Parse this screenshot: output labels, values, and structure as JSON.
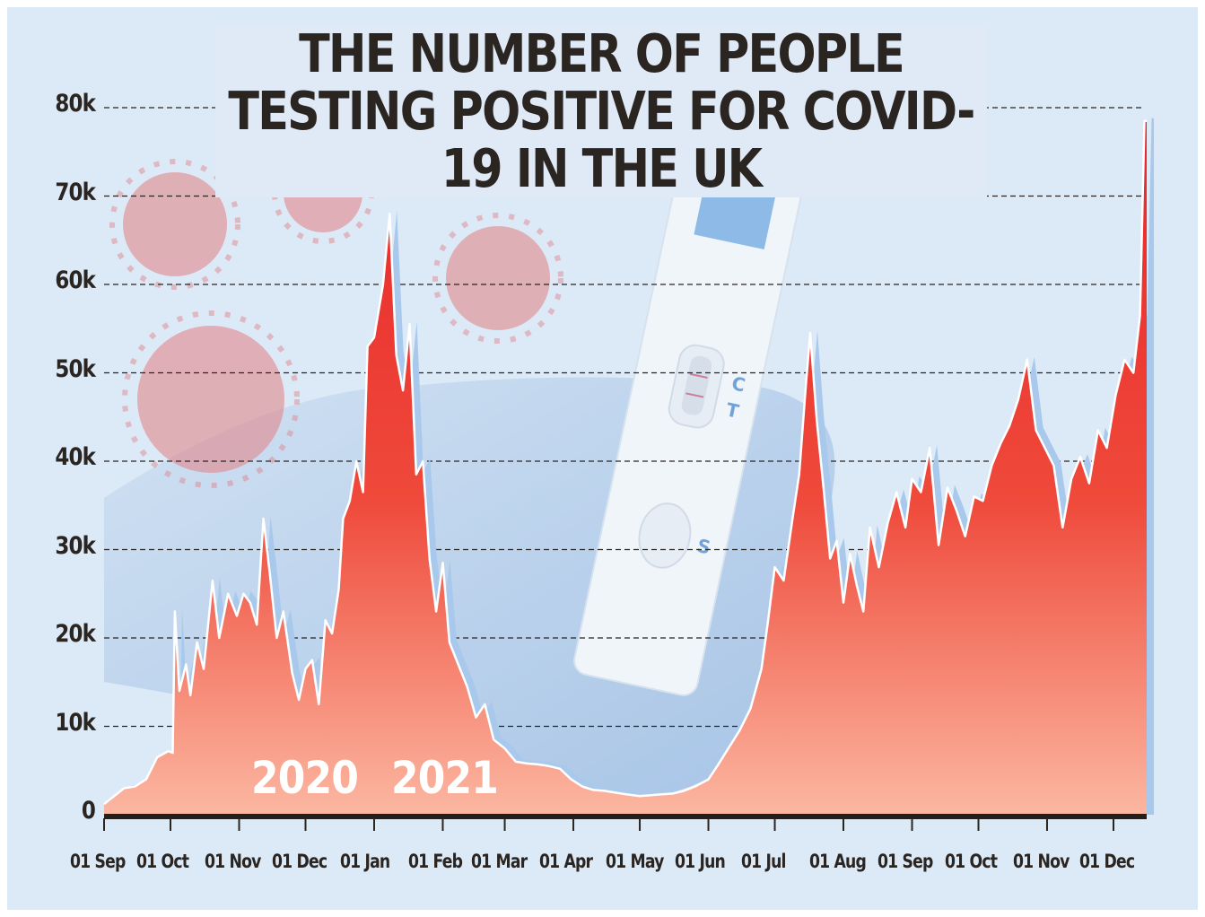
{
  "chart_data": {
    "type": "area",
    "title": "THE NUMBER OF PEOPLE TESTING POSITIVE FOR COVID-19 IN THE UK",
    "xlabel": "",
    "ylabel": "",
    "ylim": [
      0,
      80000
    ],
    "y_tick_labels": [
      "0",
      "10k",
      "20k",
      "30k",
      "40k",
      "50k",
      "60k",
      "70k",
      "80k"
    ],
    "y_tick_values": [
      0,
      10000,
      20000,
      30000,
      40000,
      50000,
      60000,
      70000,
      80000
    ],
    "x_tick_labels": [
      "01 Sep",
      "01 Oct",
      "01 Nov",
      "01 Dec",
      "01 Jan",
      "01 Feb",
      "01 Mar",
      "01 Apr",
      "01 May",
      "01 Jun",
      "01 Jul",
      "01 Aug",
      "01 Sep",
      "01 Oct",
      "01 Nov",
      "01 Dec"
    ],
    "x_tick_dates": [
      "2020-09-01",
      "2020-10-01",
      "2020-11-01",
      "2020-12-01",
      "2021-01-01",
      "2021-02-01",
      "2021-03-01",
      "2021-04-01",
      "2021-05-01",
      "2021-06-01",
      "2021-07-01",
      "2021-08-01",
      "2021-09-01",
      "2021-10-01",
      "2021-11-01",
      "2021-12-01"
    ],
    "year_labels": [
      "2020",
      "2021"
    ],
    "grid": true,
    "series": [
      {
        "values": [
          [
            "2020-09-01",
            1200
          ],
          [
            "2020-09-05",
            2000
          ],
          [
            "2020-09-10",
            3000
          ],
          [
            "2020-09-15",
            3200
          ],
          [
            "2020-09-20",
            4000
          ],
          [
            "2020-09-25",
            6500
          ],
          [
            "2020-09-30",
            7200
          ],
          [
            "2020-10-02",
            7000
          ],
          [
            "2020-10-03",
            23000
          ],
          [
            "2020-10-05",
            14000
          ],
          [
            "2020-10-08",
            17000
          ],
          [
            "2020-10-10",
            13500
          ],
          [
            "2020-10-13",
            19500
          ],
          [
            "2020-10-16",
            16500
          ],
          [
            "2020-10-20",
            26500
          ],
          [
            "2020-10-23",
            20000
          ],
          [
            "2020-10-27",
            25000
          ],
          [
            "2020-10-31",
            22500
          ],
          [
            "2020-11-03",
            25000
          ],
          [
            "2020-11-06",
            24000
          ],
          [
            "2020-11-09",
            21500
          ],
          [
            "2020-11-12",
            33500
          ],
          [
            "2020-11-15",
            27000
          ],
          [
            "2020-11-18",
            20000
          ],
          [
            "2020-11-21",
            23000
          ],
          [
            "2020-11-25",
            16000
          ],
          [
            "2020-11-28",
            13000
          ],
          [
            "2020-12-01",
            16500
          ],
          [
            "2020-12-04",
            17500
          ],
          [
            "2020-12-07",
            12500
          ],
          [
            "2020-12-10",
            22000
          ],
          [
            "2020-12-13",
            20500
          ],
          [
            "2020-12-16",
            25500
          ],
          [
            "2020-12-18",
            33500
          ],
          [
            "2020-12-21",
            35500
          ],
          [
            "2020-12-24",
            40000
          ],
          [
            "2020-12-27",
            36500
          ],
          [
            "2020-12-29",
            53000
          ],
          [
            "2021-01-01",
            54000
          ],
          [
            "2021-01-05",
            60000
          ],
          [
            "2021-01-08",
            68000
          ],
          [
            "2021-01-11",
            52000
          ],
          [
            "2021-01-14",
            48000
          ],
          [
            "2021-01-17",
            55500
          ],
          [
            "2021-01-20",
            38500
          ],
          [
            "2021-01-23",
            40000
          ],
          [
            "2021-01-26",
            29000
          ],
          [
            "2021-01-29",
            23000
          ],
          [
            "2021-02-01",
            28500
          ],
          [
            "2021-02-04",
            19500
          ],
          [
            "2021-02-08",
            17000
          ],
          [
            "2021-02-12",
            14500
          ],
          [
            "2021-02-16",
            11000
          ],
          [
            "2021-02-20",
            12500
          ],
          [
            "2021-02-24",
            8500
          ],
          [
            "2021-03-01",
            7500
          ],
          [
            "2021-03-06",
            6000
          ],
          [
            "2021-03-11",
            5800
          ],
          [
            "2021-03-16",
            5700
          ],
          [
            "2021-03-21",
            5500
          ],
          [
            "2021-03-26",
            5200
          ],
          [
            "2021-03-31",
            4000
          ],
          [
            "2021-04-05",
            3200
          ],
          [
            "2021-04-10",
            2800
          ],
          [
            "2021-04-15",
            2700
          ],
          [
            "2021-04-20",
            2500
          ],
          [
            "2021-04-25",
            2300
          ],
          [
            "2021-05-01",
            2100
          ],
          [
            "2021-05-06",
            2200
          ],
          [
            "2021-05-11",
            2300
          ],
          [
            "2021-05-16",
            2400
          ],
          [
            "2021-05-21",
            2700
          ],
          [
            "2021-05-26",
            3200
          ],
          [
            "2021-06-01",
            4000
          ],
          [
            "2021-06-05",
            5500
          ],
          [
            "2021-06-10",
            7500
          ],
          [
            "2021-06-15",
            9500
          ],
          [
            "2021-06-20",
            12000
          ],
          [
            "2021-06-25",
            16500
          ],
          [
            "2021-06-28",
            22000
          ],
          [
            "2021-07-01",
            28000
          ],
          [
            "2021-07-05",
            26500
          ],
          [
            "2021-07-09",
            33500
          ],
          [
            "2021-07-12",
            38500
          ],
          [
            "2021-07-15",
            48500
          ],
          [
            "2021-07-17",
            54500
          ],
          [
            "2021-07-20",
            44500
          ],
          [
            "2021-07-23",
            37000
          ],
          [
            "2021-07-26",
            29000
          ],
          [
            "2021-07-29",
            31000
          ],
          [
            "2021-08-01",
            24000
          ],
          [
            "2021-08-04",
            29500
          ],
          [
            "2021-08-07",
            26000
          ],
          [
            "2021-08-10",
            23000
          ],
          [
            "2021-08-13",
            32500
          ],
          [
            "2021-08-17",
            28000
          ],
          [
            "2021-08-21",
            33000
          ],
          [
            "2021-08-25",
            36500
          ],
          [
            "2021-08-29",
            32500
          ],
          [
            "2021-09-01",
            38000
          ],
          [
            "2021-09-05",
            36500
          ],
          [
            "2021-09-09",
            41500
          ],
          [
            "2021-09-13",
            30500
          ],
          [
            "2021-09-17",
            37000
          ],
          [
            "2021-09-21",
            34500
          ],
          [
            "2021-09-25",
            31500
          ],
          [
            "2021-09-29",
            36000
          ],
          [
            "2021-10-03",
            35500
          ],
          [
            "2021-10-07",
            39500
          ],
          [
            "2021-10-11",
            42000
          ],
          [
            "2021-10-15",
            44000
          ],
          [
            "2021-10-19",
            47000
          ],
          [
            "2021-10-23",
            51500
          ],
          [
            "2021-10-27",
            43500
          ],
          [
            "2021-10-31",
            41500
          ],
          [
            "2021-11-04",
            39500
          ],
          [
            "2021-11-08",
            32500
          ],
          [
            "2021-11-12",
            38000
          ],
          [
            "2021-11-16",
            40500
          ],
          [
            "2021-11-20",
            37500
          ],
          [
            "2021-11-24",
            43500
          ],
          [
            "2021-11-28",
            41500
          ],
          [
            "2021-12-02",
            47500
          ],
          [
            "2021-12-06",
            51500
          ],
          [
            "2021-12-10",
            50000
          ],
          [
            "2021-12-13",
            56500
          ],
          [
            "2021-12-15",
            78500
          ],
          [
            "2021-12-16",
            78500
          ]
        ]
      }
    ]
  },
  "colors": {
    "area_top": "#e8262a",
    "area_bottom": "#fbb7a1",
    "shadow": "#a9c9ec",
    "text": "#2b2521",
    "background": "#dfeaf6"
  }
}
